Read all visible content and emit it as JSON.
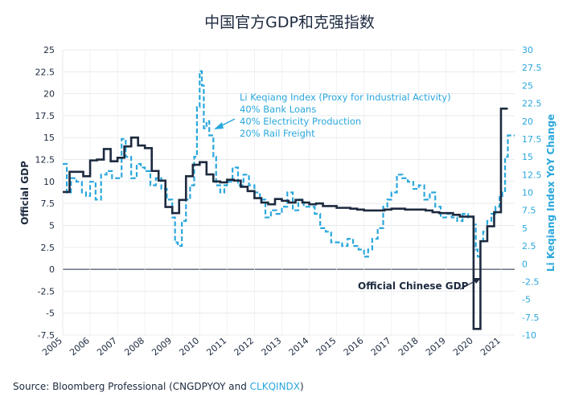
{
  "chart_data": {
    "type": "line",
    "title": "中国官方GDP和克强指数",
    "ylabel": "Official GDP",
    "ylabel_right": "Li Keqiang Index YoY Change",
    "ylim": [
      -7.5,
      25
    ],
    "ylim_right": [
      -10,
      30
    ],
    "yticks": [
      "25",
      "22.5",
      "20",
      "17.5",
      "15",
      "12.5",
      "10",
      "7.5",
      "5",
      "2.5",
      "0",
      "-2.5",
      "-5",
      "-7.5"
    ],
    "yticks_right": [
      "30",
      "27.5",
      "25",
      "22.5",
      "20",
      "17.5",
      "15",
      "12.5",
      "10",
      "7.5",
      "5",
      "2.5",
      "0",
      "-2.5",
      "-5",
      "-7.5",
      "-10"
    ],
    "xticks": [
      "2005",
      "2006",
      "2007",
      "2008",
      "2009",
      "2010",
      "2011",
      "2012",
      "2013",
      "2014",
      "2015",
      "2016",
      "2017",
      "2018",
      "2019",
      "2020",
      "2021"
    ],
    "series": [
      {
        "name": "Official Chinese GDP",
        "axis": "left",
        "style": "step",
        "color": "#1d2a3f",
        "x": [
          2005.0,
          2005.25,
          2005.5,
          2005.75,
          2006.0,
          2006.25,
          2006.5,
          2006.75,
          2007.0,
          2007.25,
          2007.5,
          2007.75,
          2008.0,
          2008.25,
          2008.5,
          2008.75,
          2009.0,
          2009.25,
          2009.5,
          2009.75,
          2010.0,
          2010.25,
          2010.5,
          2010.75,
          2011.0,
          2011.25,
          2011.5,
          2011.75,
          2012.0,
          2012.25,
          2012.5,
          2012.75,
          2013.0,
          2013.25,
          2013.5,
          2013.75,
          2014.0,
          2014.25,
          2014.5,
          2014.75,
          2015.0,
          2015.25,
          2015.5,
          2015.75,
          2016.0,
          2016.25,
          2016.5,
          2016.75,
          2017.0,
          2017.25,
          2017.5,
          2017.75,
          2018.0,
          2018.25,
          2018.5,
          2018.75,
          2019.0,
          2019.25,
          2019.5,
          2019.75,
          2020.0,
          2020.25,
          2020.5,
          2020.75,
          2021.0,
          2021.25
        ],
        "values": [
          8.8,
          11.1,
          11.1,
          10.6,
          12.4,
          12.5,
          13.7,
          12.3,
          12.7,
          14.0,
          15.0,
          14.1,
          13.8,
          11.2,
          10.1,
          7.1,
          6.4,
          7.9,
          10.6,
          11.9,
          12.2,
          10.8,
          10.0,
          9.9,
          10.2,
          10.1,
          9.4,
          8.9,
          8.1,
          7.6,
          7.4,
          8.0,
          7.8,
          7.6,
          7.9,
          7.6,
          7.4,
          7.5,
          7.2,
          7.2,
          7.0,
          7.0,
          6.9,
          6.8,
          6.7,
          6.7,
          6.7,
          6.8,
          6.9,
          6.9,
          6.8,
          6.8,
          6.8,
          6.7,
          6.5,
          6.4,
          6.4,
          6.2,
          6.0,
          6.0,
          -6.8,
          3.2,
          4.9,
          6.5,
          18.3,
          18.3
        ]
      },
      {
        "name": "Li Keqiang Index (Proxy for Industrial Activity)",
        "axis": "right",
        "style": "dashed",
        "color": "#2aa7dc",
        "x": [
          2005.0,
          2005.15,
          2005.3,
          2005.5,
          2005.7,
          2005.85,
          2006.0,
          2006.2,
          2006.4,
          2006.6,
          2006.8,
          2007.0,
          2007.15,
          2007.3,
          2007.5,
          2007.7,
          2007.85,
          2008.0,
          2008.2,
          2008.4,
          2008.6,
          2008.8,
          2009.0,
          2009.1,
          2009.2,
          2009.35,
          2009.5,
          2009.65,
          2009.8,
          2009.9,
          2010.0,
          2010.08,
          2010.15,
          2010.25,
          2010.35,
          2010.5,
          2010.6,
          2010.75,
          2010.9,
          2011.0,
          2011.2,
          2011.4,
          2011.6,
          2011.8,
          2012.0,
          2012.2,
          2012.4,
          2012.6,
          2012.8,
          2013.0,
          2013.2,
          2013.4,
          2013.6,
          2013.8,
          2014.0,
          2014.2,
          2014.4,
          2014.6,
          2014.8,
          2015.0,
          2015.2,
          2015.4,
          2015.6,
          2015.8,
          2016.0,
          2016.15,
          2016.3,
          2016.5,
          2016.7,
          2016.85,
          2017.0,
          2017.2,
          2017.4,
          2017.6,
          2017.8,
          2018.0,
          2018.2,
          2018.4,
          2018.6,
          2018.8,
          2019.0,
          2019.2,
          2019.4,
          2019.6,
          2019.8,
          2020.0,
          2020.08,
          2020.15,
          2020.25,
          2020.35,
          2020.5,
          2020.65,
          2020.8,
          2020.95,
          2021.05,
          2021.15,
          2021.25
        ],
        "values": [
          14.0,
          10.0,
          12.0,
          11.5,
          10.0,
          9.5,
          11.5,
          9.0,
          12.5,
          13.0,
          12.0,
          12.0,
          17.5,
          15.0,
          12.0,
          14.0,
          13.5,
          13.0,
          11.0,
          12.0,
          10.5,
          9.0,
          6.5,
          3.0,
          2.5,
          6.0,
          9.0,
          11.0,
          15.0,
          22.0,
          27.0,
          25.0,
          19.0,
          20.0,
          18.0,
          15.0,
          11.0,
          10.0,
          11.0,
          11.5,
          13.5,
          11.0,
          12.5,
          11.0,
          10.0,
          9.0,
          6.5,
          7.5,
          7.0,
          8.0,
          10.0,
          7.5,
          9.0,
          8.0,
          8.0,
          7.0,
          5.0,
          4.5,
          3.0,
          3.0,
          2.5,
          3.5,
          2.5,
          2.0,
          1.0,
          2.0,
          3.5,
          5.0,
          8.0,
          9.0,
          10.0,
          12.5,
          12.0,
          11.5,
          10.5,
          11.0,
          9.0,
          10.0,
          8.0,
          6.5,
          7.0,
          6.5,
          6.0,
          7.0,
          6.5,
          5.5,
          2.0,
          1.0,
          3.0,
          4.5,
          6.0,
          7.0,
          8.0,
          9.5,
          10.0,
          15.0,
          18.0
        ]
      }
    ],
    "annotations": {
      "li_keqiang_lines": [
        "Li Keqiang Index (Proxy for Industrial Activity)",
        "40% Bank Loans",
        "40% Electricity Production",
        "20% Rail Freight"
      ],
      "gdp_label": "Official Chinese GDP"
    },
    "grid": true,
    "legend": "none"
  },
  "source": {
    "prefix": "Source: Bloomberg Professional (CNGDPYOY and ",
    "highlight": "CLKQINDX",
    "suffix": ")"
  }
}
